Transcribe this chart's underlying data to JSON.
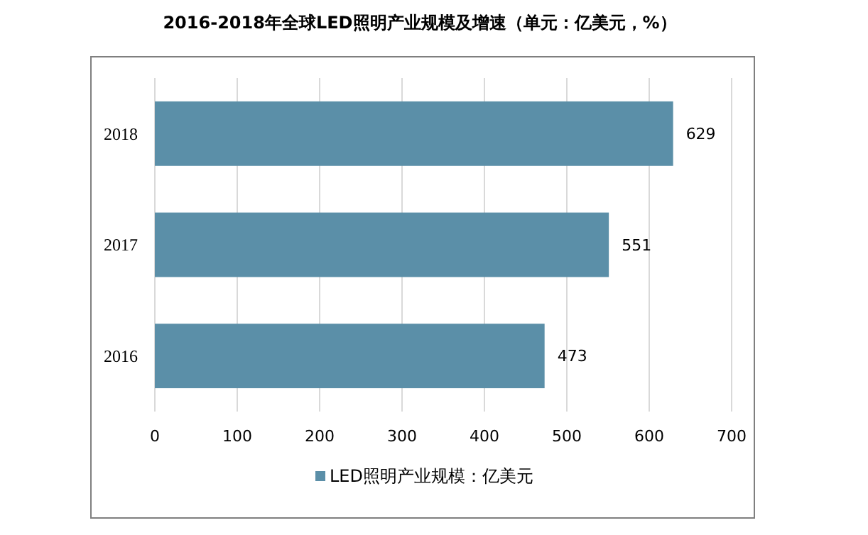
{
  "chart_data": {
    "type": "bar",
    "orientation": "horizontal",
    "title": "2016-2018年全球LED照明产业规模及增速（单元：亿美元，%）",
    "categories": [
      "2018",
      "2017",
      "2016"
    ],
    "series": [
      {
        "name": "LED照明产业规模：亿美元",
        "color": "#5b8fa8",
        "values": [
          629,
          551,
          473
        ]
      }
    ],
    "xlim": [
      0,
      700
    ],
    "xticks": [
      0,
      100,
      200,
      300,
      400,
      500,
      600,
      700
    ],
    "grid": "x",
    "legend": "bottom",
    "data_labels": true
  }
}
